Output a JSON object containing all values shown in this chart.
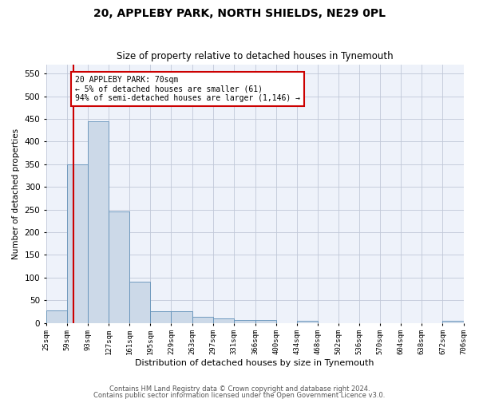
{
  "title": "20, APPLEBY PARK, NORTH SHIELDS, NE29 0PL",
  "subtitle": "Size of property relative to detached houses in Tynemouth",
  "xlabel": "Distribution of detached houses by size in Tynemouth",
  "ylabel": "Number of detached properties",
  "bar_color": "#ccd9e8",
  "bar_edge_color": "#6090b8",
  "grid_color": "#c0c8d8",
  "background_color": "#eef2fa",
  "annotation_box_color": "#cc0000",
  "property_line_color": "#cc0000",
  "property_value": 70,
  "annotation_text": "20 APPLEBY PARK: 70sqm\n← 5% of detached houses are smaller (61)\n94% of semi-detached houses are larger (1,146) →",
  "bin_edges": [
    25,
    59,
    93,
    127,
    161,
    195,
    229,
    263,
    297,
    331,
    366,
    400,
    434,
    468,
    502,
    536,
    570,
    604,
    638,
    672,
    706
  ],
  "bin_labels": [
    "25sqm",
    "59sqm",
    "93sqm",
    "127sqm",
    "161sqm",
    "195sqm",
    "229sqm",
    "263sqm",
    "297sqm",
    "331sqm",
    "366sqm",
    "400sqm",
    "434sqm",
    "468sqm",
    "502sqm",
    "536sqm",
    "570sqm",
    "604sqm",
    "638sqm",
    "672sqm",
    "706sqm"
  ],
  "bar_heights": [
    27,
    350,
    445,
    245,
    90,
    25,
    25,
    14,
    10,
    7,
    6,
    0,
    5,
    0,
    0,
    0,
    0,
    0,
    0,
    5
  ],
  "ylim": [
    0,
    570
  ],
  "yticks": [
    0,
    50,
    100,
    150,
    200,
    250,
    300,
    350,
    400,
    450,
    500,
    550
  ],
  "footnote1": "Contains HM Land Registry data © Crown copyright and database right 2024.",
  "footnote2": "Contains public sector information licensed under the Open Government Licence v3.0."
}
